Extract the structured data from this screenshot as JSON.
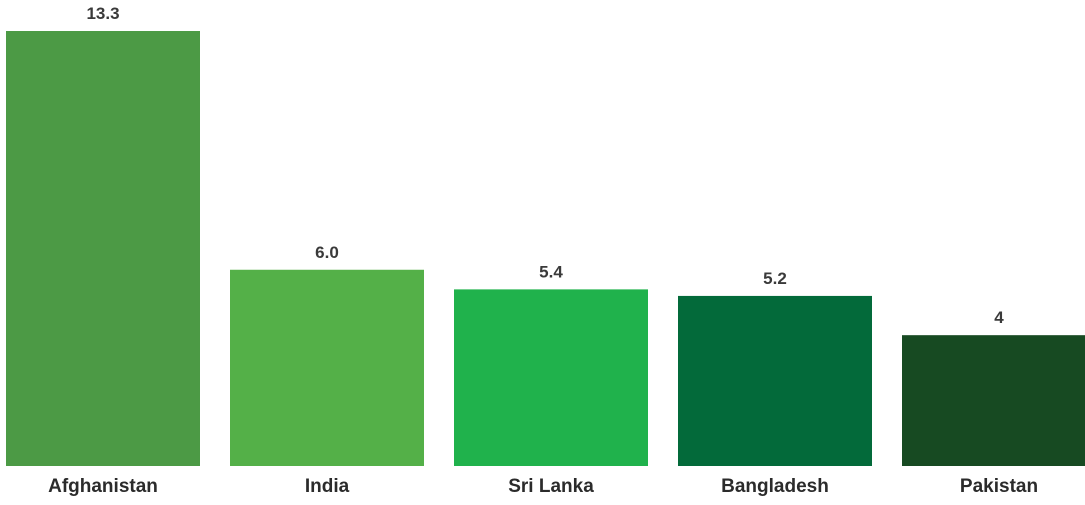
{
  "chart_data": {
    "type": "bar",
    "categories": [
      "Afghanistan",
      "India",
      "Sri Lanka",
      "Bangladesh",
      "Pakistan"
    ],
    "values": [
      13.3,
      6.0,
      5.4,
      5.2,
      4
    ],
    "value_labels": [
      "13.3",
      "6.0",
      "5.4",
      "5.2",
      "4"
    ],
    "colors": [
      "#4c9a45",
      "#54b048",
      "#20b24c",
      "#036a3a",
      "#174a22"
    ],
    "title": "",
    "xlabel": "",
    "ylabel": "",
    "ylim": [
      0,
      13.3
    ],
    "grid": false,
    "legend": "none"
  }
}
